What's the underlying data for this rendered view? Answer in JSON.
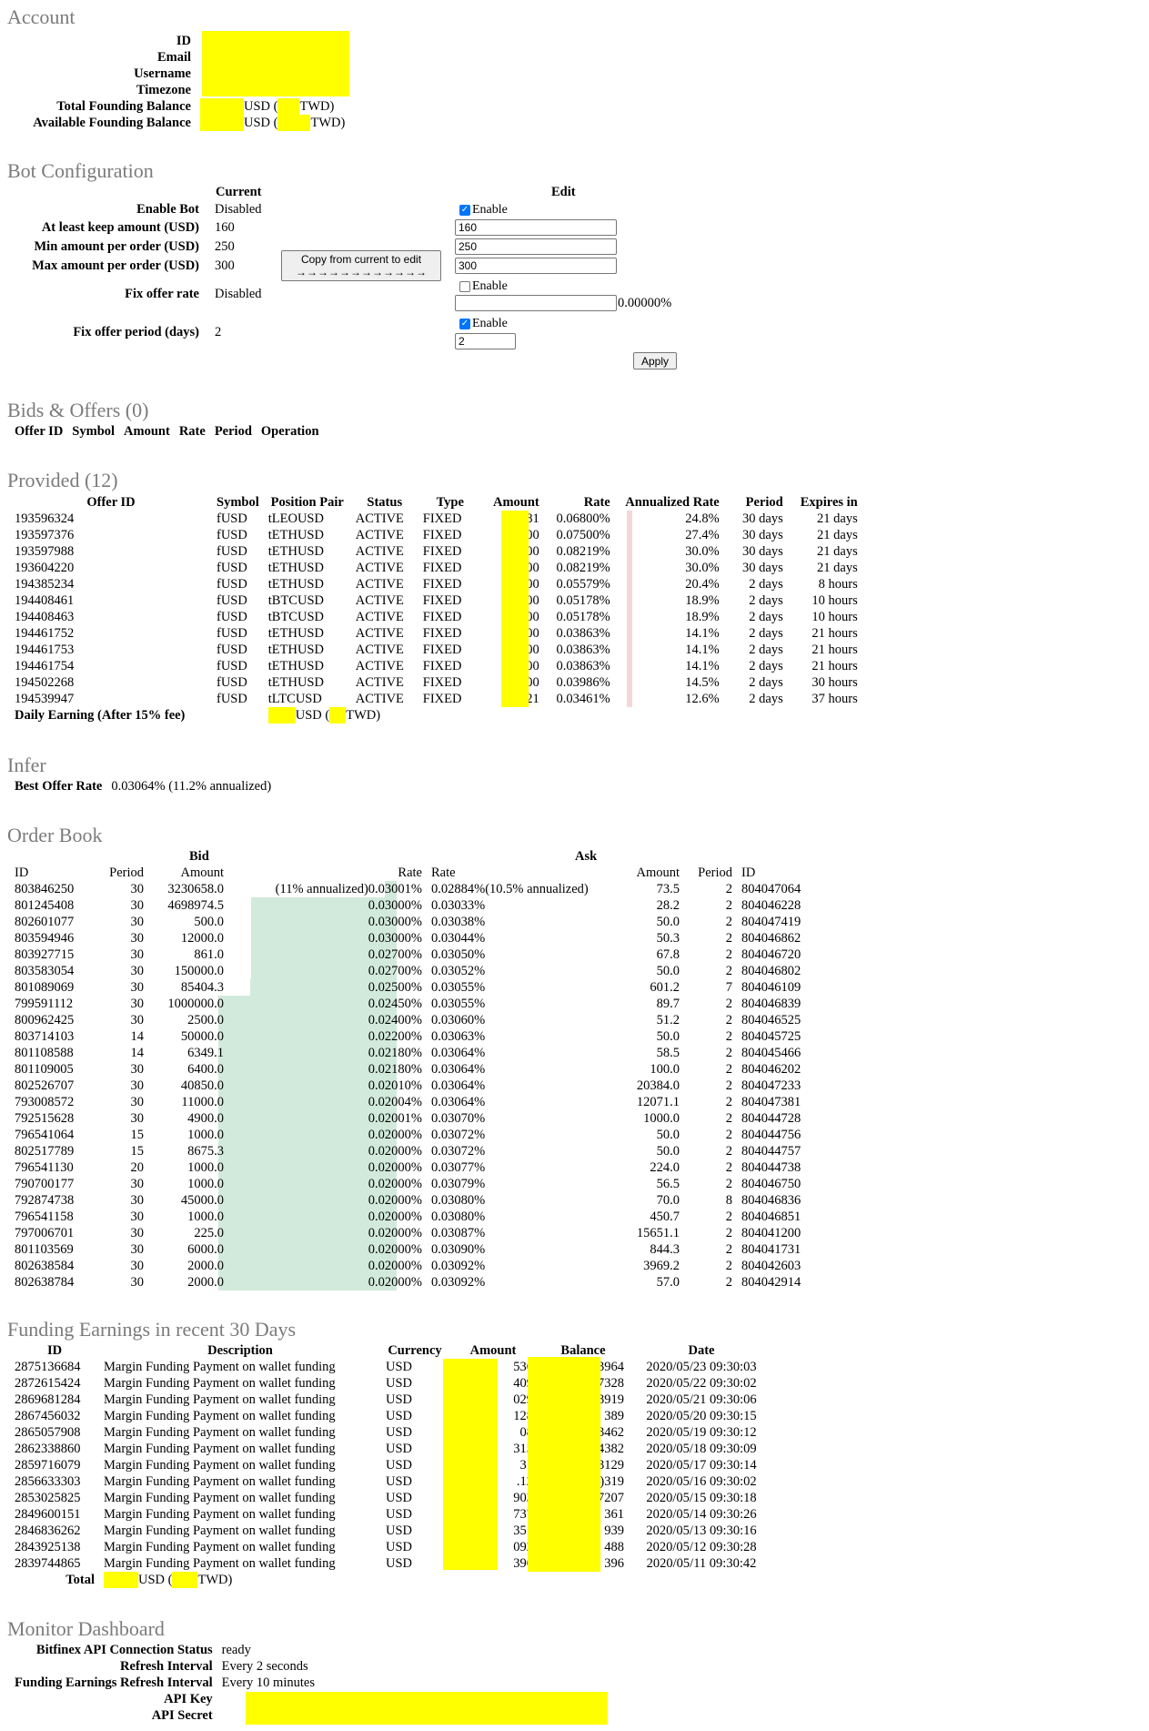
{
  "account": {
    "title": "Account",
    "id_label": "ID",
    "email_label": "Email",
    "username_label": "Username",
    "timezone_label": "Timezone",
    "total_label": "Total Founding Balance",
    "available_label": "Available Founding Balance",
    "usd_open": "USD (",
    "twd_close": "TWD)"
  },
  "bot": {
    "title": "Bot Configuration",
    "current_header": "Current",
    "edit_header": "Edit",
    "rows": {
      "enable": {
        "label": "Enable Bot",
        "current": "Disabled"
      },
      "keep": {
        "label": "At least keep amount (USD)",
        "current": "160",
        "edit_value": "160"
      },
      "min": {
        "label": "Min amount per order (USD)",
        "current": "250",
        "edit_value": "250"
      },
      "max": {
        "label": "Max amount per order (USD)",
        "current": "300",
        "edit_value": "300"
      },
      "rate": {
        "label": "Fix offer rate",
        "current": "Disabled",
        "edit_value": "",
        "suffix": "0.00000%"
      },
      "period": {
        "label": "Fix offer period (days)",
        "current": "2",
        "edit_value": "2"
      }
    },
    "enable_checkbox_label": "Enable",
    "copy_button": "Copy from current to edit",
    "copy_button_arrows": "→→→→→→→→→→→→",
    "apply_button": "Apply"
  },
  "bids": {
    "title": "Bids & Offers (0)",
    "columns": [
      "Offer ID",
      "Symbol",
      "Amount",
      "Rate",
      "Period",
      "Operation"
    ]
  },
  "provided": {
    "title": "Provided (12)",
    "columns": [
      "Offer ID",
      "Symbol",
      "Position Pair",
      "Status",
      "Type",
      "Amount",
      "Rate",
      "Annualized Rate",
      "Period",
      "Expires in"
    ],
    "rows": [
      [
        "193596324",
        "fUSD",
        "tLEOUSD",
        "ACTIVE",
        "FIXED",
        "2.81",
        "0.06800%",
        "24.8%",
        "30 days",
        "21 days"
      ],
      [
        "193597376",
        "fUSD",
        "tETHUSD",
        "ACTIVE",
        "FIXED",
        ").00",
        "0.07500%",
        "27.4%",
        "30 days",
        "21 days"
      ],
      [
        "193597988",
        "fUSD",
        "tETHUSD",
        "ACTIVE",
        "FIXED",
        ").00",
        "0.08219%",
        "30.0%",
        "30 days",
        "21 days"
      ],
      [
        "193604220",
        "fUSD",
        "tETHUSD",
        "ACTIVE",
        "FIXED",
        ").00",
        "0.08219%",
        "30.0%",
        "30 days",
        "21 days"
      ],
      [
        "194385234",
        "fUSD",
        "tETHUSD",
        "ACTIVE",
        "FIXED",
        ").00",
        "0.05579%",
        "20.4%",
        "2 days",
        "8 hours"
      ],
      [
        "194408461",
        "fUSD",
        "tBTCUSD",
        "ACTIVE",
        "FIXED",
        ").00",
        "0.05178%",
        "18.9%",
        "2 days",
        "10 hours"
      ],
      [
        "194408463",
        "fUSD",
        "tBTCUSD",
        "ACTIVE",
        "FIXED",
        ").00",
        "0.05178%",
        "18.9%",
        "2 days",
        "10 hours"
      ],
      [
        "194461752",
        "fUSD",
        "tETHUSD",
        "ACTIVE",
        "FIXED",
        ").00",
        "0.03863%",
        "14.1%",
        "2 days",
        "21 hours"
      ],
      [
        "194461753",
        "fUSD",
        "tETHUSD",
        "ACTIVE",
        "FIXED",
        ").00",
        "0.03863%",
        "14.1%",
        "2 days",
        "21 hours"
      ],
      [
        "194461754",
        "fUSD",
        "tETHUSD",
        "ACTIVE",
        "FIXED",
        ").00",
        "0.03863%",
        "14.1%",
        "2 days",
        "21 hours"
      ],
      [
        "194502268",
        "fUSD",
        "tETHUSD",
        "ACTIVE",
        "FIXED",
        ").00",
        "0.03986%",
        "14.5%",
        "2 days",
        "30 hours"
      ],
      [
        "194539947",
        "fUSD",
        "tLTCUSD",
        "ACTIVE",
        "FIXED",
        "7.21",
        "0.03461%",
        "12.6%",
        "2 days",
        "37 hours"
      ]
    ],
    "daily_label": "Daily Earning (After 15% fee)",
    "usd_open": "USD (",
    "twd_close": "TWD)"
  },
  "infer": {
    "title": "Infer",
    "label": "Best Offer Rate",
    "value": "0.03064% (11.2% annualized)"
  },
  "orderbook": {
    "title": "Order Book",
    "bid_header": "Bid",
    "ask_header": "Ask",
    "bid_columns": [
      "ID",
      "Period",
      "Amount",
      "Rate"
    ],
    "ask_columns": [
      "Rate",
      "Amount",
      "Period",
      "ID"
    ],
    "bid_first_note": "(11% annualized)",
    "ask_first_note": "(10.5% annualized)",
    "rows": [
      [
        "803846250",
        "30",
        "3230658.0",
        "0.03001%",
        "0.02884%",
        "73.5",
        "2",
        "804047064"
      ],
      [
        "801245408",
        "30",
        "4698974.5",
        "0.03000%",
        "0.03033%",
        "28.2",
        "2",
        "804046228"
      ],
      [
        "802601077",
        "30",
        "500.0",
        "0.03000%",
        "0.03038%",
        "50.0",
        "2",
        "804047419"
      ],
      [
        "803594946",
        "30",
        "12000.0",
        "0.03000%",
        "0.03044%",
        "50.3",
        "2",
        "804046862"
      ],
      [
        "803927715",
        "30",
        "861.0",
        "0.02700%",
        "0.03050%",
        "67.8",
        "2",
        "804046720"
      ],
      [
        "803583054",
        "30",
        "150000.0",
        "0.02700%",
        "0.03052%",
        "50.0",
        "2",
        "804046802"
      ],
      [
        "801089069",
        "30",
        "85404.3",
        "0.02500%",
        "0.03055%",
        "601.2",
        "7",
        "804046109"
      ],
      [
        "799591112",
        "30",
        "1000000.0",
        "0.02450%",
        "0.03055%",
        "89.7",
        "2",
        "804046839"
      ],
      [
        "800962425",
        "30",
        "2500.0",
        "0.02400%",
        "0.03060%",
        "51.2",
        "2",
        "804046525"
      ],
      [
        "803714103",
        "14",
        "50000.0",
        "0.02200%",
        "0.03063%",
        "50.0",
        "2",
        "804045725"
      ],
      [
        "801108588",
        "14",
        "6349.1",
        "0.02180%",
        "0.03064%",
        "58.5",
        "2",
        "804045466"
      ],
      [
        "801109005",
        "30",
        "6400.0",
        "0.02180%",
        "0.03064%",
        "100.0",
        "2",
        "804046202"
      ],
      [
        "802526707",
        "30",
        "40850.0",
        "0.02010%",
        "0.03064%",
        "20384.0",
        "2",
        "804047233"
      ],
      [
        "793008572",
        "30",
        "11000.0",
        "0.02004%",
        "0.03064%",
        "12071.1",
        "2",
        "804047381"
      ],
      [
        "792515628",
        "30",
        "4900.0",
        "0.02001%",
        "0.03070%",
        "1000.0",
        "2",
        "804044728"
      ],
      [
        "796541064",
        "15",
        "1000.0",
        "0.02000%",
        "0.03072%",
        "50.0",
        "2",
        "804044756"
      ],
      [
        "802517789",
        "15",
        "8675.3",
        "0.02000%",
        "0.03072%",
        "50.0",
        "2",
        "804044757"
      ],
      [
        "796541130",
        "20",
        "1000.0",
        "0.02000%",
        "0.03077%",
        "224.0",
        "2",
        "804044738"
      ],
      [
        "790700177",
        "30",
        "1000.0",
        "0.02000%",
        "0.03079%",
        "56.5",
        "2",
        "804046750"
      ],
      [
        "792874738",
        "30",
        "45000.0",
        "0.02000%",
        "0.03080%",
        "70.0",
        "8",
        "804046836"
      ],
      [
        "796541158",
        "30",
        "1000.0",
        "0.02000%",
        "0.03080%",
        "450.7",
        "2",
        "804046851"
      ],
      [
        "797006701",
        "30",
        "225.0",
        "0.02000%",
        "0.03087%",
        "15651.1",
        "2",
        "804041200"
      ],
      [
        "801103569",
        "30",
        "6000.0",
        "0.02000%",
        "0.03090%",
        "844.3",
        "2",
        "804041731"
      ],
      [
        "802638584",
        "30",
        "2000.0",
        "0.02000%",
        "0.03092%",
        "3969.2",
        "2",
        "804042603"
      ],
      [
        "802638784",
        "30",
        "2000.0",
        "0.02000%",
        "0.03092%",
        "57.0",
        "2",
        "804042914"
      ]
    ]
  },
  "earnings": {
    "title": "Funding Earnings in recent 30 Days",
    "columns": [
      "ID",
      "Description",
      "Currency",
      "Amount",
      "Balance",
      "Date"
    ],
    "rows": [
      [
        "2875136684",
        "Margin Funding Payment on wallet funding",
        "USD",
        "536",
        "3964",
        "2020/05/23 09:30:03"
      ],
      [
        "2872615424",
        "Margin Funding Payment on wallet funding",
        "USD",
        "409",
        "7328",
        "2020/05/22 09:30:02"
      ],
      [
        "2869681284",
        "Margin Funding Payment on wallet funding",
        "USD",
        "029",
        "3919",
        "2020/05/21 09:30:06"
      ],
      [
        "2867456032",
        "Margin Funding Payment on wallet funding",
        "USD",
        "128",
        "389",
        "2020/05/20 09:30:15"
      ],
      [
        "2865057908",
        "Margin Funding Payment on wallet funding",
        "USD",
        "08",
        "3462",
        "2020/05/19 09:30:12"
      ],
      [
        "2862338860",
        "Margin Funding Payment on wallet funding",
        "USD",
        "315",
        "4382",
        "2020/05/18 09:30:09"
      ],
      [
        "2859716079",
        "Margin Funding Payment on wallet funding",
        "USD",
        "31",
        "3129",
        "2020/05/17 09:30:14"
      ],
      [
        "2856633303",
        "Margin Funding Payment on wallet funding",
        "USD",
        ".12",
        ")319",
        "2020/05/16 09:30:02"
      ],
      [
        "2853025825",
        "Margin Funding Payment on wallet funding",
        "USD",
        "903",
        "7207",
        "2020/05/15 09:30:18"
      ],
      [
        "2849600151",
        "Margin Funding Payment on wallet funding",
        "USD",
        "737",
        "361",
        "2020/05/14 09:30:26"
      ],
      [
        "2846836262",
        "Margin Funding Payment on wallet funding",
        "USD",
        "351",
        "939",
        "2020/05/13 09:30:16"
      ],
      [
        "2843925138",
        "Margin Funding Payment on wallet funding",
        "USD",
        "092",
        "488",
        "2020/05/12 09:30:28"
      ],
      [
        "2839744865",
        "Margin Funding Payment on wallet funding",
        "USD",
        "396",
        "396",
        "2020/05/11 09:30:42"
      ]
    ],
    "total_label": "Total",
    "usd_open": "USD (",
    "twd_close": "TWD)"
  },
  "monitor": {
    "title": "Monitor Dashboard",
    "status_label": "Bitfinex API Connection Status",
    "status_value": "ready",
    "refresh_label": "Refresh Interval",
    "refresh_value": "Every 2 seconds",
    "earn_refresh_label": "Funding Earnings Refresh Interval",
    "earn_refresh_value": "Every 10 minutes",
    "key_label": "API Key",
    "secret_label": "API Secret"
  },
  "colors": {
    "redaction": "#ffff00",
    "rate_bar": "#f5d7d9",
    "depth_bar": "#d2eadc",
    "heading": "#7b7b7b"
  },
  "depth_bars": {
    "bid_fraction": [
      0.034,
      0.407,
      0.407,
      0.407,
      0.407,
      0.407,
      0.41,
      0.5,
      0.5,
      0.5,
      0.5,
      0.5,
      0.5,
      0.5,
      0.5,
      0.5,
      0.5,
      0.5,
      0.5,
      0.5,
      0.5,
      0.5,
      0.5,
      0.5,
      0.5
    ]
  }
}
